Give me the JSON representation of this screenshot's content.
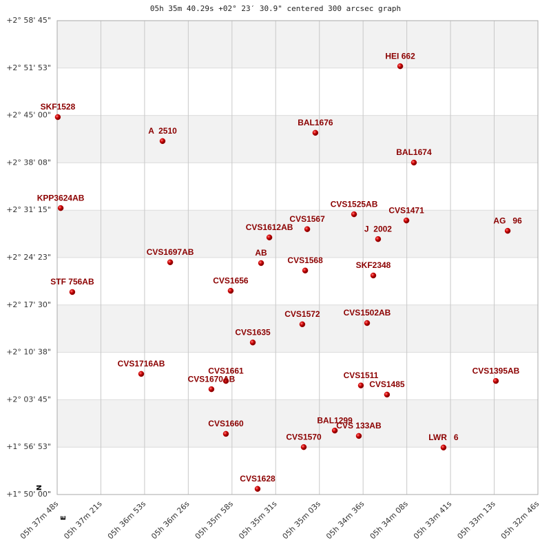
{
  "chart_data": {
    "type": "scatter",
    "title": "05h 35m 40.29s +02° 23′ 30.9\" centered 300 arcsec graph",
    "annotations": [
      "N",
      "E"
    ],
    "xlim": [
      2268,
      1966
    ],
    "xticks": [
      {
        "value": 2268,
        "label": "05h 37m 48s"
      },
      {
        "value": 2240.55,
        "label": "05h 37m 21s"
      },
      {
        "value": 2213.09,
        "label": "05h 36m 53s"
      },
      {
        "value": 2185.64,
        "label": "05h 36m 26s"
      },
      {
        "value": 2158.18,
        "label": "05h 35m 58s"
      },
      {
        "value": 2130.73,
        "label": "05h 35m 31s"
      },
      {
        "value": 2103.27,
        "label": "05h 35m 03s"
      },
      {
        "value": 2075.82,
        "label": "05h 34m 36s"
      },
      {
        "value": 2048.36,
        "label": "05h 34m 08s"
      },
      {
        "value": 2020.91,
        "label": "05h 33m 41s"
      },
      {
        "value": 1993.45,
        "label": "05h 33m 13s"
      },
      {
        "value": 1966,
        "label": "05h 32m 46s"
      }
    ],
    "ylim": [
      1.833333,
      2.979167
    ],
    "yticks": [
      {
        "value": 1.833333,
        "label": "+1° 50' 00\""
      },
      {
        "value": 1.947917,
        "label": "+1° 56' 53\""
      },
      {
        "value": 2.0625,
        "label": "+2° 03' 45\""
      },
      {
        "value": 2.177083,
        "label": "+2° 10' 38\""
      },
      {
        "value": 2.291667,
        "label": "+2° 17' 30\""
      },
      {
        "value": 2.40625,
        "label": "+2° 24' 23\""
      },
      {
        "value": 2.520833,
        "label": "+2° 31' 15\""
      },
      {
        "value": 2.635417,
        "label": "+2° 38' 08\""
      },
      {
        "value": 2.75,
        "label": "+2° 45' 00\""
      },
      {
        "value": 2.864583,
        "label": "+2° 51' 53\""
      },
      {
        "value": 2.979167,
        "label": "+2° 58' 45\""
      }
    ],
    "grid": true,
    "series": [
      {
        "color": "#cc0000",
        "point_labels": [
          "SKF1528",
          "A  2510",
          "BAL1676",
          "HEI 662",
          "BAL1674",
          "KPP3624AB",
          "CVS1525AB",
          "CVS1471",
          "AG   96",
          "CVS1567",
          "CVS1612AB",
          "J  2002",
          "CVS1697AB",
          "AB",
          "CVS1568",
          "SKF2348",
          "STF 756AB",
          "CVS1656",
          "CVS1572",
          "CVS1502AB",
          "CVS1635",
          "CVS1716AB",
          "CVS1661",
          "CVS1670AB",
          "CVS1395AB",
          "CVS1511",
          "CVS1485",
          "CVS1660",
          "BAL1299",
          "CVS 133AB",
          "CVS1570",
          "LWR   6",
          "CVS1628"
        ],
        "x": [
          2267.6,
          2201.8,
          2105.8,
          2052.5,
          2043.9,
          2265.8,
          2081.5,
          2048.6,
          1985.0,
          2110.9,
          2134.7,
          2066.4,
          2197.0,
          2139.9,
          2112.2,
          2069.4,
          2258.5,
          2159.0,
          2114.0,
          2073.3,
          2145.1,
          2215.2,
          2162.0,
          2171.1,
          1992.4,
          2077.2,
          2060.8,
          2162.0,
          2093.6,
          2078.5,
          2113.1,
          2025.3,
          2142.1
        ],
        "values": [
          2.746,
          2.688,
          2.708,
          2.869,
          2.636,
          2.526,
          2.511,
          2.496,
          2.471,
          2.475,
          2.455,
          2.451,
          2.395,
          2.393,
          2.375,
          2.363,
          2.323,
          2.326,
          2.245,
          2.248,
          2.201,
          2.125,
          2.108,
          2.088,
          2.108,
          2.097,
          2.075,
          1.98,
          1.988,
          1.975,
          1.948,
          1.947,
          1.847
        ]
      }
    ]
  }
}
